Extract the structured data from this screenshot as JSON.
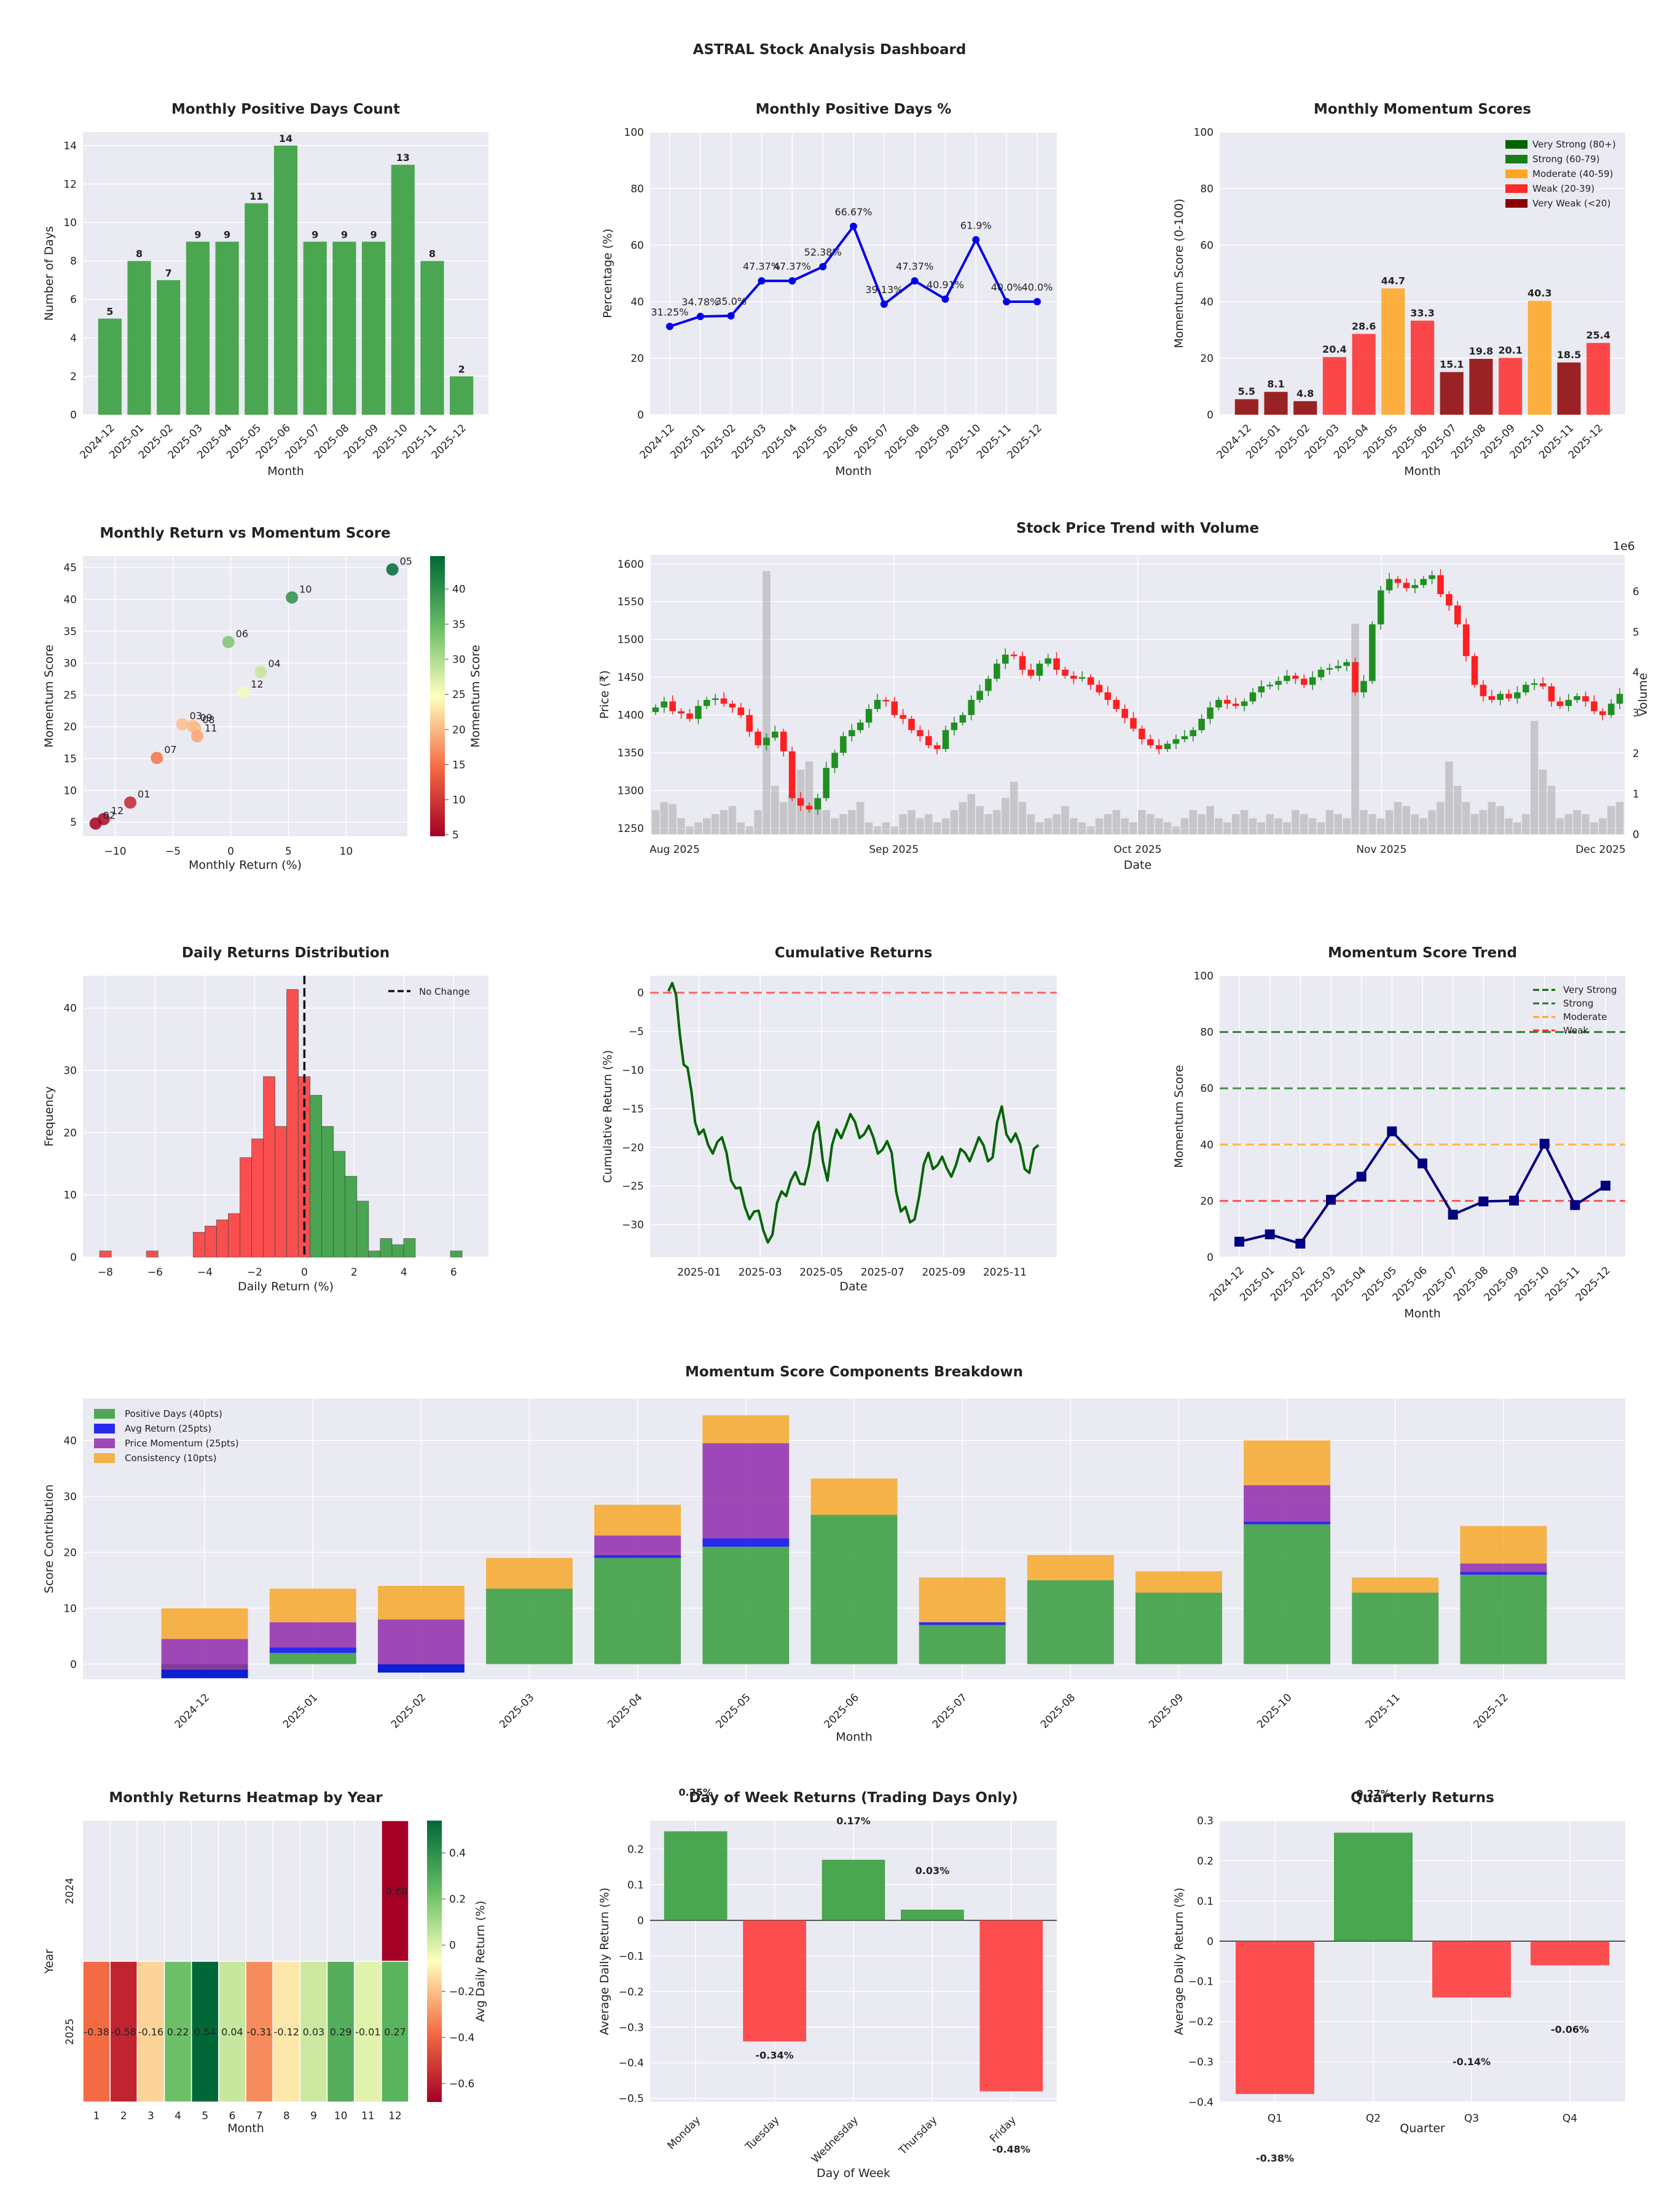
{
  "title": "ASTRAL Stock Analysis Dashboard",
  "colors": {
    "green": "#2e9a35",
    "red": "#ff3333",
    "blue": "#0000ee",
    "navy": "#000080",
    "orange": "#f6a623",
    "purple": "#8e24aa",
    "dark_green": "#006400",
    "very_strong": "#006400",
    "strong": "#1a7d1a",
    "moderate": "#ffa51f",
    "weak": "#ff2a2a",
    "very_weak": "#8b0000",
    "axes_bg": "#eaeaf2"
  },
  "chart_data": [
    {
      "id": "positive_days_count",
      "type": "bar",
      "title": "Monthly Positive Days Count",
      "xlabel": "Month",
      "ylabel": "Number of Days",
      "categories": [
        "2024-12",
        "2025-01",
        "2025-02",
        "2025-03",
        "2025-04",
        "2025-05",
        "2025-06",
        "2025-07",
        "2025-08",
        "2025-09",
        "2025-10",
        "2025-11",
        "2025-12"
      ],
      "values": [
        5,
        8,
        7,
        9,
        9,
        11,
        14,
        9,
        9,
        9,
        13,
        8,
        2
      ],
      "ylim": [
        0,
        14.7
      ],
      "yticks": [
        0,
        2,
        4,
        6,
        8,
        10,
        12,
        14
      ],
      "grid": true
    },
    {
      "id": "positive_days_pct",
      "type": "line",
      "title": "Monthly Positive Days %",
      "xlabel": "Month",
      "ylabel": "Percentage (%)",
      "categories": [
        "2024-12",
        "2025-01",
        "2025-02",
        "2025-03",
        "2025-04",
        "2025-05",
        "2025-06",
        "2025-07",
        "2025-08",
        "2025-09",
        "2025-10",
        "2025-11",
        "2025-12"
      ],
      "values": [
        31.25,
        34.78,
        35.0,
        47.37,
        47.37,
        52.38,
        66.67,
        39.13,
        47.37,
        40.91,
        61.9,
        40.0,
        40.0
      ],
      "point_labels": [
        "31.25%",
        "34.78%",
        "35.0%",
        "47.37%",
        "47.37%",
        "52.38%",
        "66.67%",
        "39.13%",
        "47.37%",
        "40.91%",
        "61.9%",
        "40.0%",
        "40.0%"
      ],
      "ylim": [
        0,
        100
      ],
      "yticks": [
        0,
        20,
        40,
        60,
        80,
        100
      ],
      "grid": true
    },
    {
      "id": "momentum_scores",
      "type": "bar",
      "title": "Monthly Momentum Scores",
      "xlabel": "Month",
      "ylabel": "Momentum Score (0-100)",
      "categories": [
        "2024-12",
        "2025-01",
        "2025-02",
        "2025-03",
        "2025-04",
        "2025-05",
        "2025-06",
        "2025-07",
        "2025-08",
        "2025-09",
        "2025-10",
        "2025-11",
        "2025-12"
      ],
      "values": [
        5.5,
        8.1,
        4.8,
        20.4,
        28.6,
        44.7,
        33.3,
        15.1,
        19.8,
        20.1,
        40.3,
        18.5,
        25.4
      ],
      "ylim": [
        0,
        100
      ],
      "yticks": [
        0,
        20,
        40,
        60,
        80,
        100
      ],
      "legend": [
        "Very Strong (80+)",
        "Strong (60-79)",
        "Moderate (40-59)",
        "Weak (20-39)",
        "Very Weak (<20)"
      ],
      "legend_position": "top-right",
      "grid": true
    },
    {
      "id": "return_vs_momentum",
      "type": "scatter",
      "title": "Monthly Return vs Momentum Score",
      "xlabel": "Monthly Return (%)",
      "ylabel": "Momentum Score",
      "colorbar_label": "Momentum Score",
      "colorbar_ticks": [
        5,
        10,
        15,
        20,
        25,
        30,
        35,
        40
      ],
      "points": [
        {
          "label": "12",
          "x": -11.0,
          "y": 5.5
        },
        {
          "label": "01",
          "x": -8.7,
          "y": 8.1
        },
        {
          "label": "02",
          "x": -11.7,
          "y": 4.8
        },
        {
          "label": "03",
          "x": -4.2,
          "y": 20.4
        },
        {
          "label": "04",
          "x": 2.6,
          "y": 28.6
        },
        {
          "label": "05",
          "x": 14.0,
          "y": 44.7
        },
        {
          "label": "06",
          "x": -0.2,
          "y": 33.3
        },
        {
          "label": "07",
          "x": -6.4,
          "y": 15.1
        },
        {
          "label": "08",
          "x": -3.1,
          "y": 19.8
        },
        {
          "label": "09",
          "x": -3.3,
          "y": 20.1
        },
        {
          "label": "10",
          "x": 5.3,
          "y": 40.3
        },
        {
          "label": "11",
          "x": -2.9,
          "y": 18.5
        },
        {
          "label": "12",
          "x": 1.1,
          "y": 25.4
        }
      ],
      "xlim": [
        -12.8,
        15.3
      ],
      "ylim": [
        2.8,
        46.8
      ],
      "xticks": [
        -10,
        -5,
        0,
        5,
        10
      ],
      "yticks": [
        5,
        10,
        15,
        20,
        25,
        30,
        35,
        40,
        45
      ],
      "grid": true
    },
    {
      "id": "price_trend",
      "type": "candlestick",
      "title": "Stock Price Trend with Volume",
      "xlabel": "Date",
      "ylabel": "Price (₹)",
      "y2label": "Volume",
      "y2_multiplier": "1e6",
      "xticklabels": [
        "Aug 2025",
        "Sep 2025",
        "Oct 2025",
        "Nov 2025",
        "Dec 2025"
      ],
      "yticks": [
        1250,
        1300,
        1350,
        1400,
        1450,
        1500,
        1550,
        1600
      ],
      "y2ticks": [
        0,
        1,
        2,
        3,
        4,
        5,
        6
      ],
      "ylim": [
        1242,
        1612
      ],
      "y2lim": [
        0,
        6.9
      ],
      "closes": [
        1410,
        1418,
        1405,
        1402,
        1395,
        1412,
        1420,
        1422,
        1415,
        1410,
        1400,
        1378,
        1360,
        1370,
        1378,
        1352,
        1290,
        1280,
        1275,
        1290,
        1330,
        1350,
        1372,
        1380,
        1390,
        1408,
        1420,
        1418,
        1400,
        1395,
        1380,
        1372,
        1360,
        1355,
        1380,
        1390,
        1400,
        1420,
        1432,
        1448,
        1468,
        1480,
        1478,
        1460,
        1452,
        1468,
        1475,
        1460,
        1452,
        1448,
        1450,
        1440,
        1430,
        1420,
        1408,
        1396,
        1382,
        1368,
        1360,
        1355,
        1362,
        1368,
        1372,
        1380,
        1395,
        1410,
        1420,
        1415,
        1412,
        1418,
        1430,
        1438,
        1440,
        1445,
        1452,
        1448,
        1440,
        1450,
        1460,
        1462,
        1465,
        1470,
        1430,
        1445,
        1520,
        1565,
        1580,
        1575,
        1568,
        1572,
        1580,
        1585,
        1560,
        1545,
        1520,
        1478,
        1440,
        1425,
        1420,
        1428,
        1422,
        1430,
        1440,
        1442,
        1438,
        1418,
        1412,
        1420,
        1425,
        1418,
        1405,
        1400,
        1415,
        1428
      ],
      "volumes": [
        0.6,
        0.8,
        0.75,
        0.4,
        0.2,
        0.3,
        0.4,
        0.5,
        0.6,
        0.7,
        0.3,
        0.2,
        0.6,
        6.5,
        1.2,
        0.8,
        1.0,
        1.6,
        1.8,
        0.9,
        0.6,
        0.4,
        0.5,
        0.6,
        0.8,
        0.3,
        0.2,
        0.3,
        0.2,
        0.5,
        0.6,
        0.4,
        0.5,
        0.3,
        0.4,
        0.6,
        0.8,
        1.0,
        0.7,
        0.5,
        0.6,
        0.9,
        1.3,
        0.8,
        0.5,
        0.3,
        0.4,
        0.5,
        0.7,
        0.4,
        0.3,
        0.2,
        0.4,
        0.5,
        0.6,
        0.4,
        0.3,
        0.6,
        0.5,
        0.4,
        0.3,
        0.2,
        0.4,
        0.6,
        0.5,
        0.7,
        0.4,
        0.3,
        0.5,
        0.6,
        0.4,
        0.3,
        0.5,
        0.4,
        0.3,
        0.6,
        0.5,
        0.4,
        0.3,
        0.6,
        0.5,
        0.4,
        5.2,
        0.6,
        0.5,
        0.4,
        0.6,
        0.8,
        0.7,
        0.5,
        0.4,
        0.6,
        0.8,
        1.8,
        1.2,
        0.8,
        0.5,
        0.6,
        0.8,
        0.7,
        0.4,
        0.3,
        0.5,
        2.8,
        1.6,
        1.2,
        0.4,
        0.5,
        0.6,
        0.5,
        0.3,
        0.4,
        0.7,
        0.8
      ],
      "grid": true
    },
    {
      "id": "daily_returns_distribution",
      "type": "bar",
      "subtype": "histogram",
      "title": "Daily Returns Distribution",
      "xlabel": "Daily Return (%)",
      "ylabel": "Frequency",
      "bins": [
        -8.23,
        -7.76,
        -7.29,
        -6.82,
        -6.35,
        -5.88,
        -5.41,
        -4.94,
        -4.47,
        -4.0,
        -3.53,
        -3.06,
        -2.59,
        -2.12,
        -1.65,
        -1.18,
        -0.71,
        -0.24,
        0.23,
        0.7,
        1.17,
        1.64,
        2.11,
        2.58,
        3.05,
        3.52,
        3.99,
        4.46,
        4.93,
        5.4,
        5.87,
        6.34,
        6.81
      ],
      "counts": [
        1,
        0,
        0,
        0,
        1,
        0,
        0,
        0,
        4,
        5,
        6,
        7,
        16,
        19,
        29,
        21,
        43,
        29,
        26,
        21,
        17,
        13,
        9,
        1,
        3,
        2,
        3,
        0,
        0,
        0,
        1,
        0
      ],
      "legend": [
        "No Change"
      ],
      "legend_position": "top-right",
      "xlim": [
        -8.9,
        7.4
      ],
      "ylim": [
        0,
        45.2
      ],
      "xticks": [
        -8,
        -6,
        -4,
        -2,
        0,
        2,
        4,
        6
      ],
      "yticks": [
        0,
        10,
        20,
        30,
        40
      ],
      "grid": true
    },
    {
      "id": "cumulative_returns",
      "type": "line",
      "title": "Cumulative Returns",
      "xlabel": "Date",
      "ylabel": "Cumulative Return (%)",
      "xticklabels": [
        "2025-01",
        "2025-03",
        "2025-05",
        "2025-07",
        "2025-09",
        "2025-11"
      ],
      "x_month_index": [
        0,
        0.25,
        0.5,
        0.75,
        1.0,
        1.3,
        1.6,
        1.9,
        2.2,
        2.5,
        2.8,
        3.1,
        3.4,
        3.7,
        4.0,
        4.3,
        4.6,
        4.9,
        5.2,
        5.5,
        5.8,
        6.1,
        6.4,
        6.7,
        7.0,
        7.3,
        7.6,
        7.9,
        8.2,
        8.5,
        8.8,
        9.1,
        9.4,
        9.7,
        10.0,
        10.3,
        10.6,
        10.9,
        11.2,
        11.5,
        11.8,
        12.1
      ],
      "values": [
        0.2,
        -0.3,
        -8,
        -14,
        -17,
        -21,
        -18,
        -22,
        -24,
        -29,
        -27,
        -32,
        -30,
        -27,
        -23,
        -26,
        -21,
        -18,
        -23,
        -19,
        -16,
        -18,
        -17,
        -20,
        -19,
        -22,
        -27,
        -31,
        -25,
        -22,
        -21,
        -24,
        -21,
        -22,
        -19,
        -21,
        -20,
        -16,
        -18,
        -21,
        -22,
        -21
      ],
      "ylim": [
        -34.2,
        2.2
      ],
      "yticks": [
        0,
        -5,
        -10,
        -15,
        -20,
        -25,
        -30
      ],
      "grid": true
    },
    {
      "id": "momentum_trend",
      "type": "line",
      "title": "Momentum Score Trend",
      "xlabel": "Month",
      "ylabel": "Momentum Score",
      "categories": [
        "2024-12",
        "2025-01",
        "2025-02",
        "2025-03",
        "2025-04",
        "2025-05",
        "2025-06",
        "2025-07",
        "2025-08",
        "2025-09",
        "2025-10",
        "2025-11",
        "2025-12"
      ],
      "values": [
        5.5,
        8.1,
        4.8,
        20.4,
        28.6,
        44.7,
        33.3,
        15.1,
        19.8,
        20.1,
        40.3,
        18.5,
        25.4
      ],
      "thresholds": [
        {
          "name": "Very Strong",
          "value": 80
        },
        {
          "name": "Strong",
          "value": 60
        },
        {
          "name": "Moderate",
          "value": 40
        },
        {
          "name": "Weak",
          "value": 20
        }
      ],
      "legend_position": "top-right",
      "ylim": [
        0,
        100
      ],
      "yticks": [
        0,
        20,
        40,
        60,
        80,
        100
      ],
      "grid": true
    },
    {
      "id": "components_breakdown",
      "type": "bar",
      "subtype": "stacked",
      "title": "Momentum Score Components Breakdown",
      "xlabel": "Month",
      "ylabel": "Score Contribution",
      "categories": [
        "2024-12",
        "2025-01",
        "2025-02",
        "2025-03",
        "2025-04",
        "2025-05",
        "2025-06",
        "2025-07",
        "2025-08",
        "2025-09",
        "2025-10",
        "2025-11",
        "2025-12"
      ],
      "series": [
        {
          "name": "Positive Days (40pts)",
          "values": [
            -2.5,
            2.0,
            -1.5,
            13.5,
            19.0,
            21.0,
            26.7,
            7.0,
            15.0,
            12.8,
            25.0,
            12.8,
            16.0
          ]
        },
        {
          "name": "Avg Return (25pts)",
          "values": [
            1.5,
            1.0,
            1.5,
            0.0,
            0.5,
            1.5,
            0.0,
            0.5,
            0.0,
            0.0,
            0.5,
            0.0,
            0.5
          ]
        },
        {
          "name": "Price Momentum (25pts)",
          "values": [
            5.5,
            4.5,
            8.0,
            0.0,
            3.5,
            17.0,
            0.0,
            0.0,
            0.0,
            0.0,
            6.5,
            0.0,
            1.5
          ]
        },
        {
          "name": "Consistency (10pts)",
          "values": [
            5.5,
            6.0,
            6.0,
            5.5,
            5.5,
            5.0,
            6.5,
            8.0,
            4.5,
            3.8,
            8.0,
            2.7,
            6.7
          ]
        }
      ],
      "legend_position": "top-left",
      "ylim": [
        -2.7,
        47.5
      ],
      "yticks": [
        0,
        10,
        20,
        30,
        40
      ],
      "grid": true
    },
    {
      "id": "returns_heatmap",
      "type": "heatmap",
      "title": "Monthly Returns Heatmap by Year",
      "xlabel": "Month",
      "ylabel": "Year",
      "colorbar_label": "Avg Daily Return (%)",
      "colorbar_ticks": [
        0.4,
        0.2,
        0.0,
        -0.2,
        -0.4,
        -0.6
      ],
      "x": [
        1,
        2,
        3,
        4,
        5,
        6,
        7,
        8,
        9,
        10,
        11,
        12
      ],
      "y": [
        "2024",
        "2025"
      ],
      "values": [
        [
          null,
          null,
          null,
          null,
          null,
          null,
          null,
          null,
          null,
          null,
          null,
          -0.68
        ],
        [
          -0.38,
          -0.58,
          -0.16,
          0.22,
          0.54,
          0.04,
          -0.31,
          -0.12,
          0.03,
          0.29,
          -0.01,
          0.27
        ]
      ],
      "cell_labels": [
        [
          "",
          "",
          "",
          "",
          "",
          "",
          "",
          "",
          "",
          "",
          "",
          "-0.68"
        ],
        [
          "-0.38",
          "-0.58",
          "-0.16",
          "0.22",
          "0.54",
          "0.04",
          "-0.31",
          "-0.12",
          "0.03",
          "0.29",
          "-0.01",
          "0.27"
        ]
      ],
      "vlim": [
        -0.68,
        0.54
      ]
    },
    {
      "id": "day_of_week",
      "type": "bar",
      "title": "Day of Week Returns (Trading Days Only)",
      "xlabel": "Day of Week",
      "ylabel": "Average Daily Return (%)",
      "categories": [
        "Monday",
        "Tuesday",
        "Wednesday",
        "Thursday",
        "Friday"
      ],
      "values": [
        0.25,
        -0.34,
        0.17,
        0.03,
        -0.48
      ],
      "value_labels": [
        "0.25%",
        "-0.34%",
        "0.17%",
        "0.03%",
        "-0.48%"
      ],
      "ylim": [
        -0.51,
        0.28
      ],
      "yticks": [
        0.2,
        0.1,
        0.0,
        -0.1,
        -0.2,
        -0.3,
        -0.4,
        -0.5
      ],
      "grid": true
    },
    {
      "id": "quarterly_returns",
      "type": "bar",
      "title": "Quarterly Returns",
      "xlabel": "Quarter",
      "ylabel": "Average Daily Return (%)",
      "categories": [
        "Q1",
        "Q2",
        "Q3",
        "Q4"
      ],
      "values": [
        -0.38,
        0.27,
        -0.14,
        -0.06
      ],
      "value_labels": [
        "-0.38%",
        "0.27%",
        "-0.14%",
        "-0.06%"
      ],
      "ylim": [
        -0.4,
        0.3
      ],
      "yticks": [
        0.3,
        0.2,
        0.1,
        0.0,
        -0.1,
        -0.2,
        -0.3,
        -0.4
      ],
      "grid": true
    }
  ]
}
